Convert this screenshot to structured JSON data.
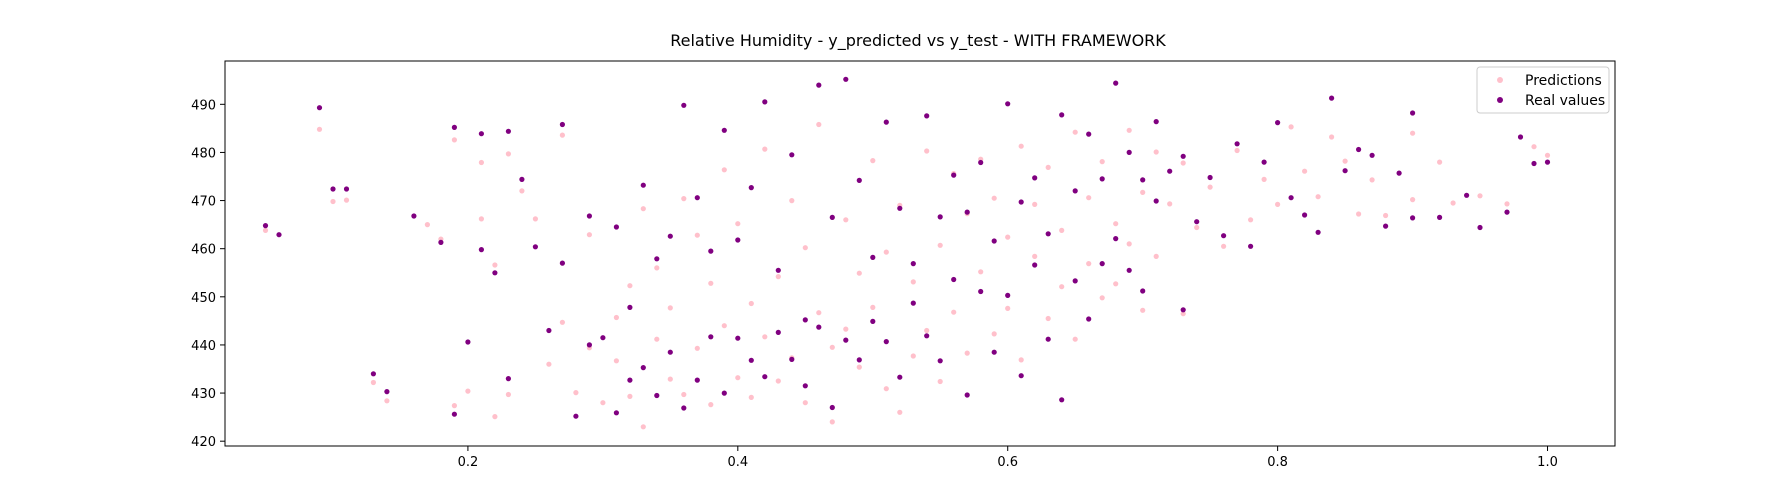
{
  "chart_data": {
    "type": "scatter",
    "title": "Relative Humidity - y_predicted vs y_test - WITH FRAMEWORK",
    "xlabel": "",
    "ylabel": "",
    "xlim": [
      0.02,
      1.05
    ],
    "ylim": [
      419,
      499
    ],
    "xticks": [
      0.2,
      0.4,
      0.6,
      0.8,
      1.0
    ],
    "xtick_labels": [
      "0.2",
      "0.4",
      "0.6",
      "0.8",
      "1.0"
    ],
    "yticks": [
      420,
      430,
      440,
      450,
      460,
      470,
      480,
      490
    ],
    "ytick_labels": [
      "420",
      "430",
      "440",
      "450",
      "460",
      "470",
      "480",
      "490"
    ],
    "grid": false,
    "legend": "top-right",
    "series": [
      {
        "name": "Predictions",
        "color": "#ffc0cb",
        "points": [
          [
            0.05,
            463.8
          ],
          [
            0.09,
            484.8
          ],
          [
            0.1,
            469.8
          ],
          [
            0.11,
            470.1
          ],
          [
            0.13,
            432.2
          ],
          [
            0.14,
            428.4
          ],
          [
            0.17,
            465.0
          ],
          [
            0.18,
            462.0
          ],
          [
            0.19,
            482.6
          ],
          [
            0.19,
            427.4
          ],
          [
            0.2,
            430.4
          ],
          [
            0.21,
            466.2
          ],
          [
            0.21,
            477.9
          ],
          [
            0.22,
            425.1
          ],
          [
            0.22,
            456.6
          ],
          [
            0.23,
            479.7
          ],
          [
            0.23,
            429.7
          ],
          [
            0.24,
            472.0
          ],
          [
            0.25,
            466.2
          ],
          [
            0.26,
            436.0
          ],
          [
            0.27,
            483.6
          ],
          [
            0.27,
            444.7
          ],
          [
            0.28,
            430.1
          ],
          [
            0.29,
            439.4
          ],
          [
            0.29,
            462.9
          ],
          [
            0.3,
            428.0
          ],
          [
            0.31,
            445.7
          ],
          [
            0.31,
            436.7
          ],
          [
            0.32,
            452.3
          ],
          [
            0.32,
            429.3
          ],
          [
            0.33,
            468.3
          ],
          [
            0.33,
            423.0
          ],
          [
            0.34,
            441.2
          ],
          [
            0.34,
            456.0
          ],
          [
            0.35,
            432.9
          ],
          [
            0.35,
            447.7
          ],
          [
            0.36,
            470.4
          ],
          [
            0.36,
            429.7
          ],
          [
            0.37,
            462.8
          ],
          [
            0.37,
            439.3
          ],
          [
            0.38,
            452.8
          ],
          [
            0.38,
            427.6
          ],
          [
            0.39,
            476.4
          ],
          [
            0.39,
            444.0
          ],
          [
            0.4,
            433.2
          ],
          [
            0.4,
            465.2
          ],
          [
            0.41,
            448.6
          ],
          [
            0.41,
            429.1
          ],
          [
            0.42,
            480.7
          ],
          [
            0.42,
            441.7
          ],
          [
            0.43,
            454.2
          ],
          [
            0.43,
            432.5
          ],
          [
            0.44,
            470.0
          ],
          [
            0.44,
            437.3
          ],
          [
            0.45,
            460.2
          ],
          [
            0.45,
            428.0
          ],
          [
            0.46,
            446.7
          ],
          [
            0.46,
            485.8
          ],
          [
            0.47,
            439.5
          ],
          [
            0.47,
            424.0
          ],
          [
            0.48,
            466.0
          ],
          [
            0.48,
            443.3
          ],
          [
            0.49,
            454.9
          ],
          [
            0.49,
            435.4
          ],
          [
            0.5,
            478.3
          ],
          [
            0.5,
            447.8
          ],
          [
            0.51,
            430.9
          ],
          [
            0.51,
            459.3
          ],
          [
            0.52,
            426.0
          ],
          [
            0.52,
            469.0
          ],
          [
            0.53,
            437.7
          ],
          [
            0.53,
            453.1
          ],
          [
            0.54,
            480.3
          ],
          [
            0.54,
            443.0
          ],
          [
            0.55,
            460.7
          ],
          [
            0.55,
            432.4
          ],
          [
            0.56,
            475.6
          ],
          [
            0.56,
            446.8
          ],
          [
            0.57,
            467.3
          ],
          [
            0.57,
            438.3
          ],
          [
            0.58,
            478.6
          ],
          [
            0.58,
            455.2
          ],
          [
            0.59,
            442.3
          ],
          [
            0.59,
            470.5
          ],
          [
            0.6,
            462.4
          ],
          [
            0.6,
            447.6
          ],
          [
            0.61,
            481.3
          ],
          [
            0.61,
            436.9
          ],
          [
            0.62,
            458.4
          ],
          [
            0.62,
            469.2
          ],
          [
            0.63,
            445.5
          ],
          [
            0.63,
            476.9
          ],
          [
            0.64,
            452.1
          ],
          [
            0.64,
            463.8
          ],
          [
            0.65,
            484.2
          ],
          [
            0.65,
            441.2
          ],
          [
            0.66,
            470.6
          ],
          [
            0.66,
            456.9
          ],
          [
            0.67,
            449.8
          ],
          [
            0.67,
            478.1
          ],
          [
            0.68,
            465.2
          ],
          [
            0.68,
            452.7
          ],
          [
            0.69,
            484.6
          ],
          [
            0.69,
            461.0
          ],
          [
            0.7,
            471.7
          ],
          [
            0.7,
            447.2
          ],
          [
            0.71,
            480.1
          ],
          [
            0.71,
            458.4
          ],
          [
            0.72,
            469.3
          ],
          [
            0.73,
            446.5
          ],
          [
            0.73,
            477.8
          ],
          [
            0.74,
            464.4
          ],
          [
            0.75,
            472.8
          ],
          [
            0.76,
            460.5
          ],
          [
            0.77,
            480.4
          ],
          [
            0.78,
            466.0
          ],
          [
            0.79,
            474.4
          ],
          [
            0.8,
            469.2
          ],
          [
            0.81,
            485.3
          ],
          [
            0.82,
            476.1
          ],
          [
            0.83,
            470.8
          ],
          [
            0.84,
            483.2
          ],
          [
            0.85,
            478.2
          ],
          [
            0.86,
            467.2
          ],
          [
            0.87,
            474.3
          ],
          [
            0.88,
            466.9
          ],
          [
            0.9,
            484.0
          ],
          [
            0.9,
            470.2
          ],
          [
            0.92,
            478.0
          ],
          [
            0.93,
            469.5
          ],
          [
            0.95,
            471.0
          ],
          [
            0.97,
            469.3
          ],
          [
            0.99,
            481.2
          ],
          [
            1.0,
            479.4
          ]
        ]
      },
      {
        "name": "Real values",
        "color": "#800080",
        "points": [
          [
            0.05,
            464.8
          ],
          [
            0.06,
            462.9
          ],
          [
            0.09,
            489.3
          ],
          [
            0.1,
            472.4
          ],
          [
            0.11,
            472.4
          ],
          [
            0.13,
            434.0
          ],
          [
            0.14,
            430.3
          ],
          [
            0.16,
            466.8
          ],
          [
            0.18,
            461.3
          ],
          [
            0.19,
            485.2
          ],
          [
            0.19,
            425.6
          ],
          [
            0.2,
            440.6
          ],
          [
            0.21,
            459.8
          ],
          [
            0.21,
            483.9
          ],
          [
            0.22,
            455.0
          ],
          [
            0.23,
            484.4
          ],
          [
            0.23,
            433.0
          ],
          [
            0.24,
            474.4
          ],
          [
            0.25,
            460.4
          ],
          [
            0.26,
            443.0
          ],
          [
            0.27,
            485.8
          ],
          [
            0.27,
            457.0
          ],
          [
            0.28,
            425.2
          ],
          [
            0.29,
            440.0
          ],
          [
            0.29,
            466.8
          ],
          [
            0.3,
            441.5
          ],
          [
            0.31,
            464.5
          ],
          [
            0.31,
            425.9
          ],
          [
            0.32,
            432.7
          ],
          [
            0.32,
            447.8
          ],
          [
            0.33,
            473.2
          ],
          [
            0.33,
            435.3
          ],
          [
            0.34,
            457.9
          ],
          [
            0.34,
            429.5
          ],
          [
            0.35,
            462.6
          ],
          [
            0.35,
            438.5
          ],
          [
            0.36,
            489.8
          ],
          [
            0.36,
            426.9
          ],
          [
            0.37,
            470.6
          ],
          [
            0.37,
            432.7
          ],
          [
            0.38,
            459.5
          ],
          [
            0.38,
            441.7
          ],
          [
            0.39,
            484.6
          ],
          [
            0.39,
            430.0
          ],
          [
            0.4,
            441.4
          ],
          [
            0.4,
            461.8
          ],
          [
            0.41,
            436.8
          ],
          [
            0.41,
            472.7
          ],
          [
            0.42,
            433.4
          ],
          [
            0.42,
            490.5
          ],
          [
            0.43,
            442.6
          ],
          [
            0.43,
            455.5
          ],
          [
            0.44,
            437.0
          ],
          [
            0.44,
            479.5
          ],
          [
            0.45,
            445.2
          ],
          [
            0.45,
            431.5
          ],
          [
            0.46,
            494.0
          ],
          [
            0.46,
            443.7
          ],
          [
            0.47,
            427.0
          ],
          [
            0.47,
            466.5
          ],
          [
            0.48,
            495.2
          ],
          [
            0.48,
            441.0
          ],
          [
            0.49,
            474.2
          ],
          [
            0.49,
            436.9
          ],
          [
            0.5,
            458.2
          ],
          [
            0.5,
            444.9
          ],
          [
            0.51,
            486.3
          ],
          [
            0.51,
            440.7
          ],
          [
            0.52,
            468.4
          ],
          [
            0.52,
            433.3
          ],
          [
            0.53,
            456.9
          ],
          [
            0.53,
            448.7
          ],
          [
            0.54,
            487.6
          ],
          [
            0.54,
            441.9
          ],
          [
            0.55,
            466.6
          ],
          [
            0.55,
            436.7
          ],
          [
            0.56,
            475.3
          ],
          [
            0.56,
            453.6
          ],
          [
            0.57,
            467.6
          ],
          [
            0.57,
            429.6
          ],
          [
            0.58,
            477.9
          ],
          [
            0.58,
            451.1
          ],
          [
            0.59,
            461.6
          ],
          [
            0.59,
            438.5
          ],
          [
            0.6,
            490.1
          ],
          [
            0.6,
            450.3
          ],
          [
            0.61,
            469.7
          ],
          [
            0.61,
            433.6
          ],
          [
            0.62,
            456.6
          ],
          [
            0.62,
            474.7
          ],
          [
            0.63,
            441.2
          ],
          [
            0.63,
            463.1
          ],
          [
            0.64,
            487.8
          ],
          [
            0.64,
            428.6
          ],
          [
            0.65,
            472.0
          ],
          [
            0.65,
            453.3
          ],
          [
            0.66,
            483.8
          ],
          [
            0.66,
            445.4
          ],
          [
            0.67,
            474.5
          ],
          [
            0.67,
            456.9
          ],
          [
            0.68,
            494.4
          ],
          [
            0.68,
            462.1
          ],
          [
            0.69,
            455.5
          ],
          [
            0.69,
            480.0
          ],
          [
            0.7,
            474.3
          ],
          [
            0.7,
            451.2
          ],
          [
            0.71,
            486.4
          ],
          [
            0.71,
            469.9
          ],
          [
            0.72,
            476.1
          ],
          [
            0.73,
            447.3
          ],
          [
            0.73,
            479.2
          ],
          [
            0.74,
            465.6
          ],
          [
            0.75,
            474.8
          ],
          [
            0.76,
            462.7
          ],
          [
            0.77,
            481.8
          ],
          [
            0.78,
            460.5
          ],
          [
            0.79,
            478.0
          ],
          [
            0.8,
            486.2
          ],
          [
            0.81,
            470.6
          ],
          [
            0.82,
            467.0
          ],
          [
            0.83,
            463.4
          ],
          [
            0.84,
            491.3
          ],
          [
            0.85,
            476.2
          ],
          [
            0.86,
            480.6
          ],
          [
            0.87,
            479.4
          ],
          [
            0.88,
            464.7
          ],
          [
            0.89,
            475.7
          ],
          [
            0.9,
            488.2
          ],
          [
            0.9,
            466.4
          ],
          [
            0.92,
            466.5
          ],
          [
            0.94,
            471.1
          ],
          [
            0.95,
            464.4
          ],
          [
            0.97,
            467.6
          ],
          [
            0.98,
            483.2
          ],
          [
            0.99,
            477.7
          ],
          [
            1.0,
            478.0
          ]
        ]
      }
    ]
  }
}
